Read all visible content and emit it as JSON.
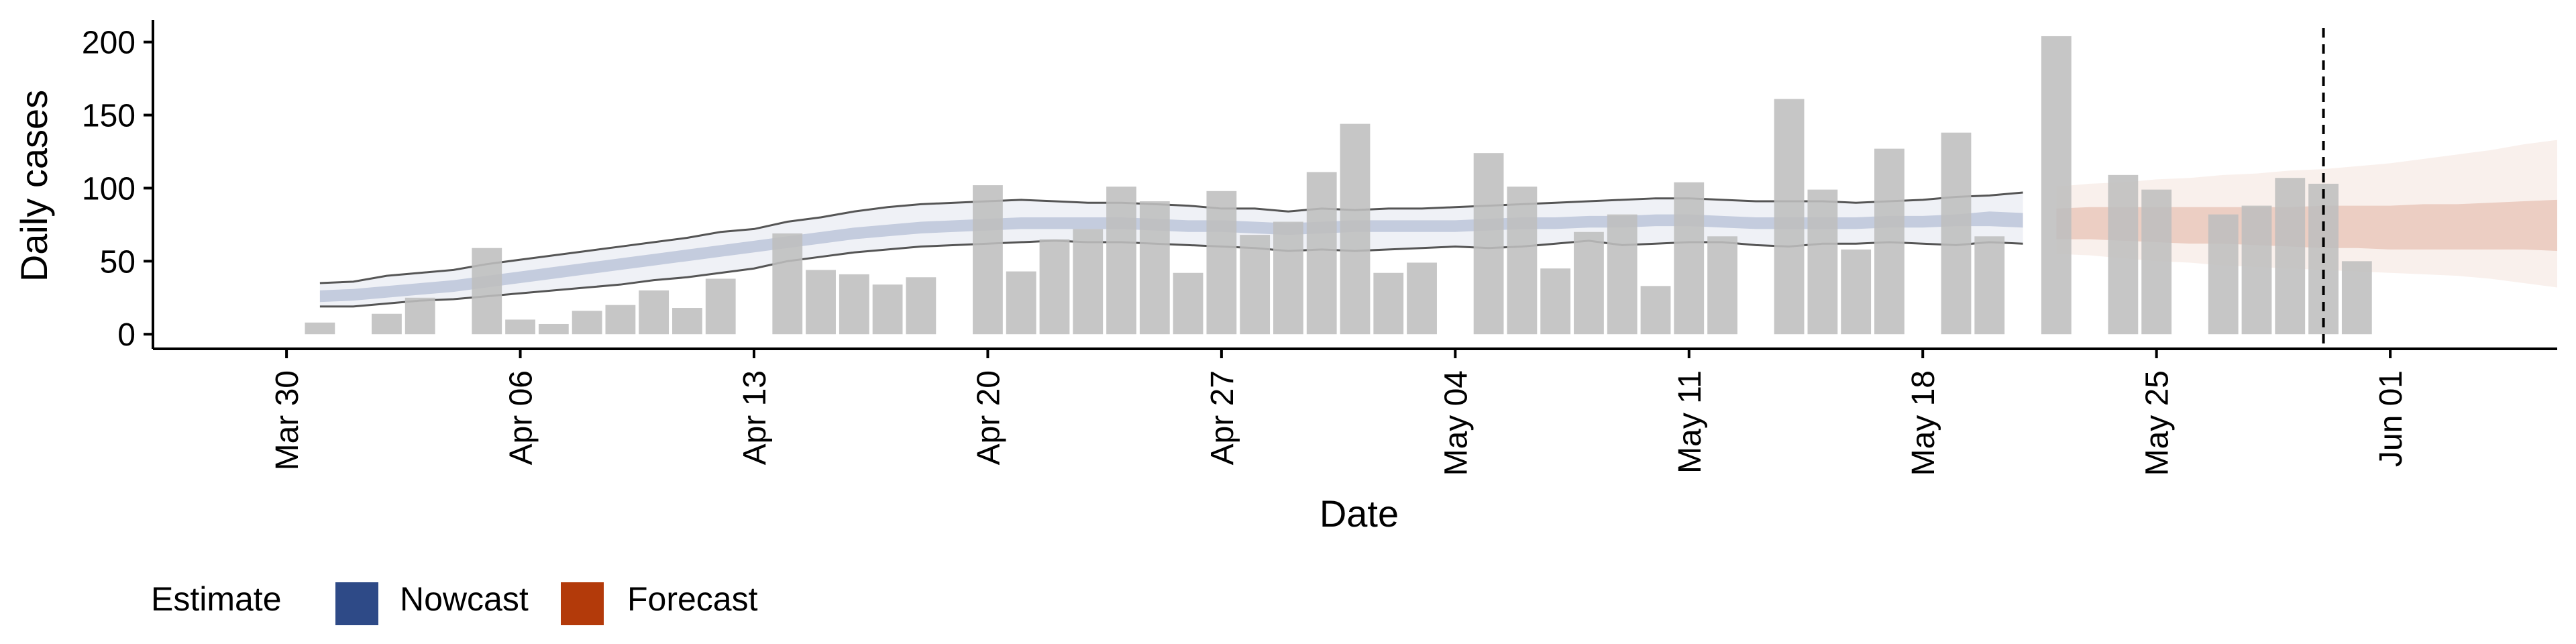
{
  "chart_data": {
    "type": "bar",
    "title": "",
    "xlabel": "Date",
    "ylabel": "Daily cases",
    "ylim": [
      -10,
      215
    ],
    "xlim": [
      "2020-03-26",
      "2020-06-06"
    ],
    "grid": false,
    "y_ticks": [
      0,
      50,
      100,
      150,
      200
    ],
    "x_ticks": [
      {
        "date": "2020-03-30",
        "label": "Mar 30"
      },
      {
        "date": "2020-04-06",
        "label": "Apr 06"
      },
      {
        "date": "2020-04-13",
        "label": "Apr 13"
      },
      {
        "date": "2020-04-20",
        "label": "Apr 20"
      },
      {
        "date": "2020-04-27",
        "label": "Apr 27"
      },
      {
        "date": "2020-05-04",
        "label": "May 04"
      },
      {
        "date": "2020-05-11",
        "label": "May 11"
      },
      {
        "date": "2020-05-18",
        "label": "May 18"
      },
      {
        "date": "2020-05-25",
        "label": "May 25"
      },
      {
        "date": "2020-06-01",
        "label": "Jun 01"
      }
    ],
    "bars": {
      "color": "#bebebe",
      "start_date": "2020-03-31",
      "values": [
        8,
        0,
        14,
        25,
        0,
        59,
        10,
        7,
        16,
        20,
        30,
        18,
        38,
        0,
        69,
        44,
        41,
        34,
        39,
        0,
        102,
        43,
        65,
        72,
        101,
        91,
        42,
        98,
        68,
        77,
        111,
        144,
        42,
        49,
        0,
        124,
        101,
        45,
        70,
        82,
        33,
        104,
        67,
        0,
        161,
        99,
        58,
        127,
        0,
        138,
        67,
        0,
        204,
        0,
        109,
        99,
        0,
        82,
        88,
        107,
        103,
        50
      ]
    },
    "nowcast": {
      "start_date": "2020-03-31",
      "median": [
        26,
        27,
        29,
        31,
        33,
        36,
        39,
        42,
        45,
        48,
        51,
        54,
        57,
        60,
        63,
        66,
        69,
        71,
        73,
        74,
        75,
        76,
        76,
        76,
        76,
        75,
        74,
        74,
        73,
        72,
        73,
        74,
        74,
        74,
        74,
        75,
        76,
        76,
        77,
        77,
        78,
        78,
        77,
        76,
        76,
        76,
        76,
        77,
        77,
        78,
        79,
        78
      ],
      "inner_lower": [
        22,
        23,
        25,
        27,
        29,
        32,
        35,
        38,
        41,
        44,
        47,
        50,
        53,
        56,
        59,
        62,
        65,
        67,
        69,
        70,
        71,
        72,
        72,
        72,
        72,
        71,
        70,
        70,
        69,
        68,
        69,
        70,
        70,
        70,
        70,
        71,
        72,
        72,
        73,
        73,
        74,
        74,
        73,
        72,
        72,
        72,
        72,
        73,
        73,
        74,
        74,
        73
      ],
      "inner_upper": [
        30,
        31,
        33,
        35,
        37,
        40,
        43,
        46,
        49,
        52,
        55,
        58,
        61,
        64,
        67,
        70,
        73,
        75,
        77,
        78,
        79,
        80,
        80,
        80,
        80,
        79,
        78,
        78,
        77,
        76,
        77,
        78,
        78,
        78,
        78,
        79,
        80,
        80,
        81,
        81,
        82,
        82,
        81,
        80,
        80,
        80,
        80,
        81,
        81,
        82,
        84,
        83
      ],
      "outer_lower": [
        19,
        19,
        21,
        23,
        24,
        26,
        28,
        30,
        32,
        34,
        37,
        39,
        42,
        45,
        50,
        53,
        56,
        58,
        60,
        61,
        62,
        63,
        64,
        63,
        63,
        62,
        61,
        60,
        59,
        57,
        58,
        57,
        58,
        59,
        60,
        59,
        60,
        62,
        64,
        61,
        62,
        63,
        63,
        61,
        60,
        62,
        62,
        63,
        62,
        61,
        63,
        62
      ],
      "outer_upper": [
        35,
        36,
        40,
        42,
        44,
        48,
        51,
        54,
        57,
        60,
        63,
        66,
        70,
        72,
        77,
        80,
        84,
        87,
        89,
        90,
        91,
        92,
        91,
        90,
        90,
        89,
        88,
        86,
        86,
        84,
        86,
        85,
        86,
        86,
        87,
        88,
        89,
        90,
        91,
        92,
        93,
        93,
        92,
        91,
        91,
        91,
        90,
        91,
        92,
        94,
        95,
        97
      ],
      "color": "#2e4a87"
    },
    "forecast": {
      "start_date": "2020-05-22",
      "median": [
        75,
        75,
        74,
        74,
        73,
        73,
        72,
        72,
        72,
        72,
        72,
        73,
        73,
        74,
        74,
        75
      ],
      "inner_lower": [
        65,
        65,
        64,
        63,
        62,
        62,
        61,
        60,
        59,
        59,
        58,
        58,
        58,
        58,
        58,
        57
      ],
      "inner_upper": [
        86,
        87,
        87,
        87,
        87,
        87,
        87,
        87,
        88,
        88,
        88,
        89,
        89,
        90,
        91,
        92
      ],
      "outer_lower": [
        55,
        54,
        52,
        50,
        49,
        47,
        46,
        45,
        44,
        43,
        42,
        41,
        40,
        38,
        35,
        32
      ],
      "outer_upper": [
        101,
        103,
        104,
        106,
        107,
        109,
        110,
        112,
        113,
        115,
        117,
        120,
        123,
        126,
        130,
        133
      ],
      "color": "#b33a0a"
    },
    "vline": {
      "date": "2020-05-30",
      "style": "dashed"
    },
    "legend": {
      "position": "bottom-left",
      "title": "Estimate",
      "entries": [
        {
          "label": "Nowcast",
          "color": "#2e4a87"
        },
        {
          "label": "Forecast",
          "color": "#b33a0a"
        }
      ]
    }
  }
}
